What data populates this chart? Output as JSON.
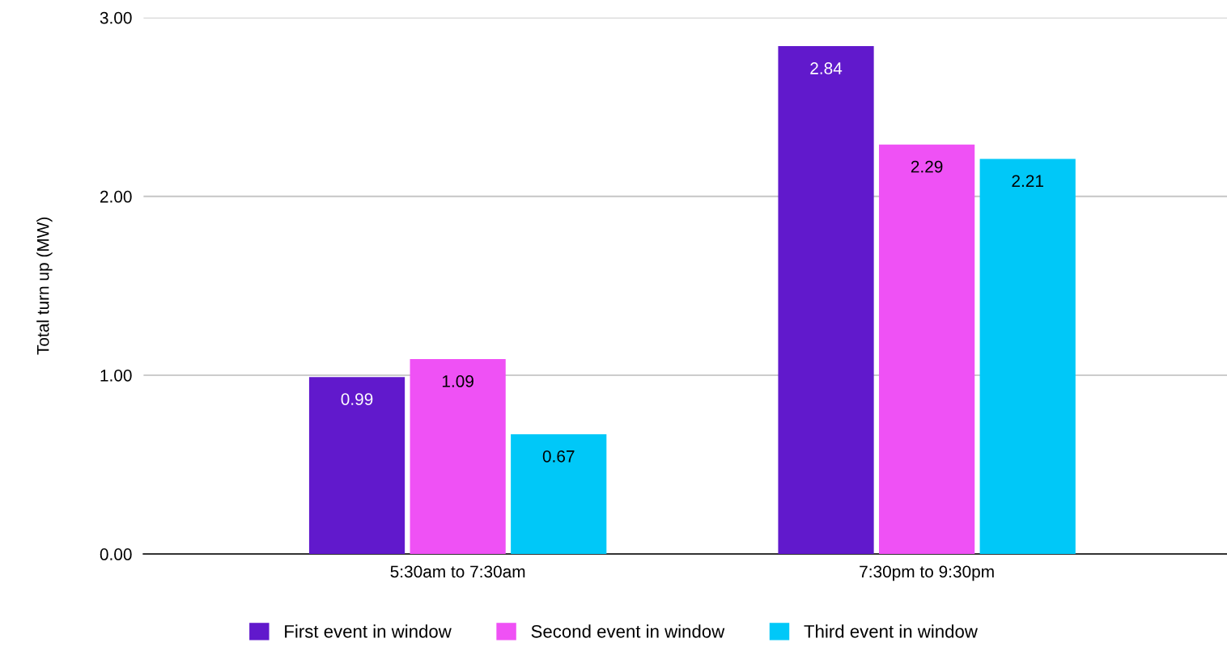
{
  "chart_data": {
    "type": "bar",
    "ylabel": "Total turn up (MW)",
    "categories": [
      "5:30am to 7:30am",
      "7:30pm to 9:30pm"
    ],
    "series": [
      {
        "name": "First event in window",
        "color": "#6119cc",
        "values": [
          0.99,
          2.84
        ]
      },
      {
        "name": "Second event in window",
        "color": "#ef51f5",
        "values": [
          1.09,
          2.29
        ]
      },
      {
        "name": "Third event in window",
        "color": "#00c8f8",
        "values": [
          0.67,
          2.21
        ]
      }
    ],
    "ylim": [
      0,
      3
    ],
    "yticks": [
      {
        "value": 0,
        "label": "0.00"
      },
      {
        "value": 1,
        "label": "1.00"
      },
      {
        "value": 2,
        "label": "2.00"
      },
      {
        "value": 3,
        "label": "3.00"
      }
    ],
    "grid": "y",
    "legend": "bottom",
    "data_labels": true
  }
}
